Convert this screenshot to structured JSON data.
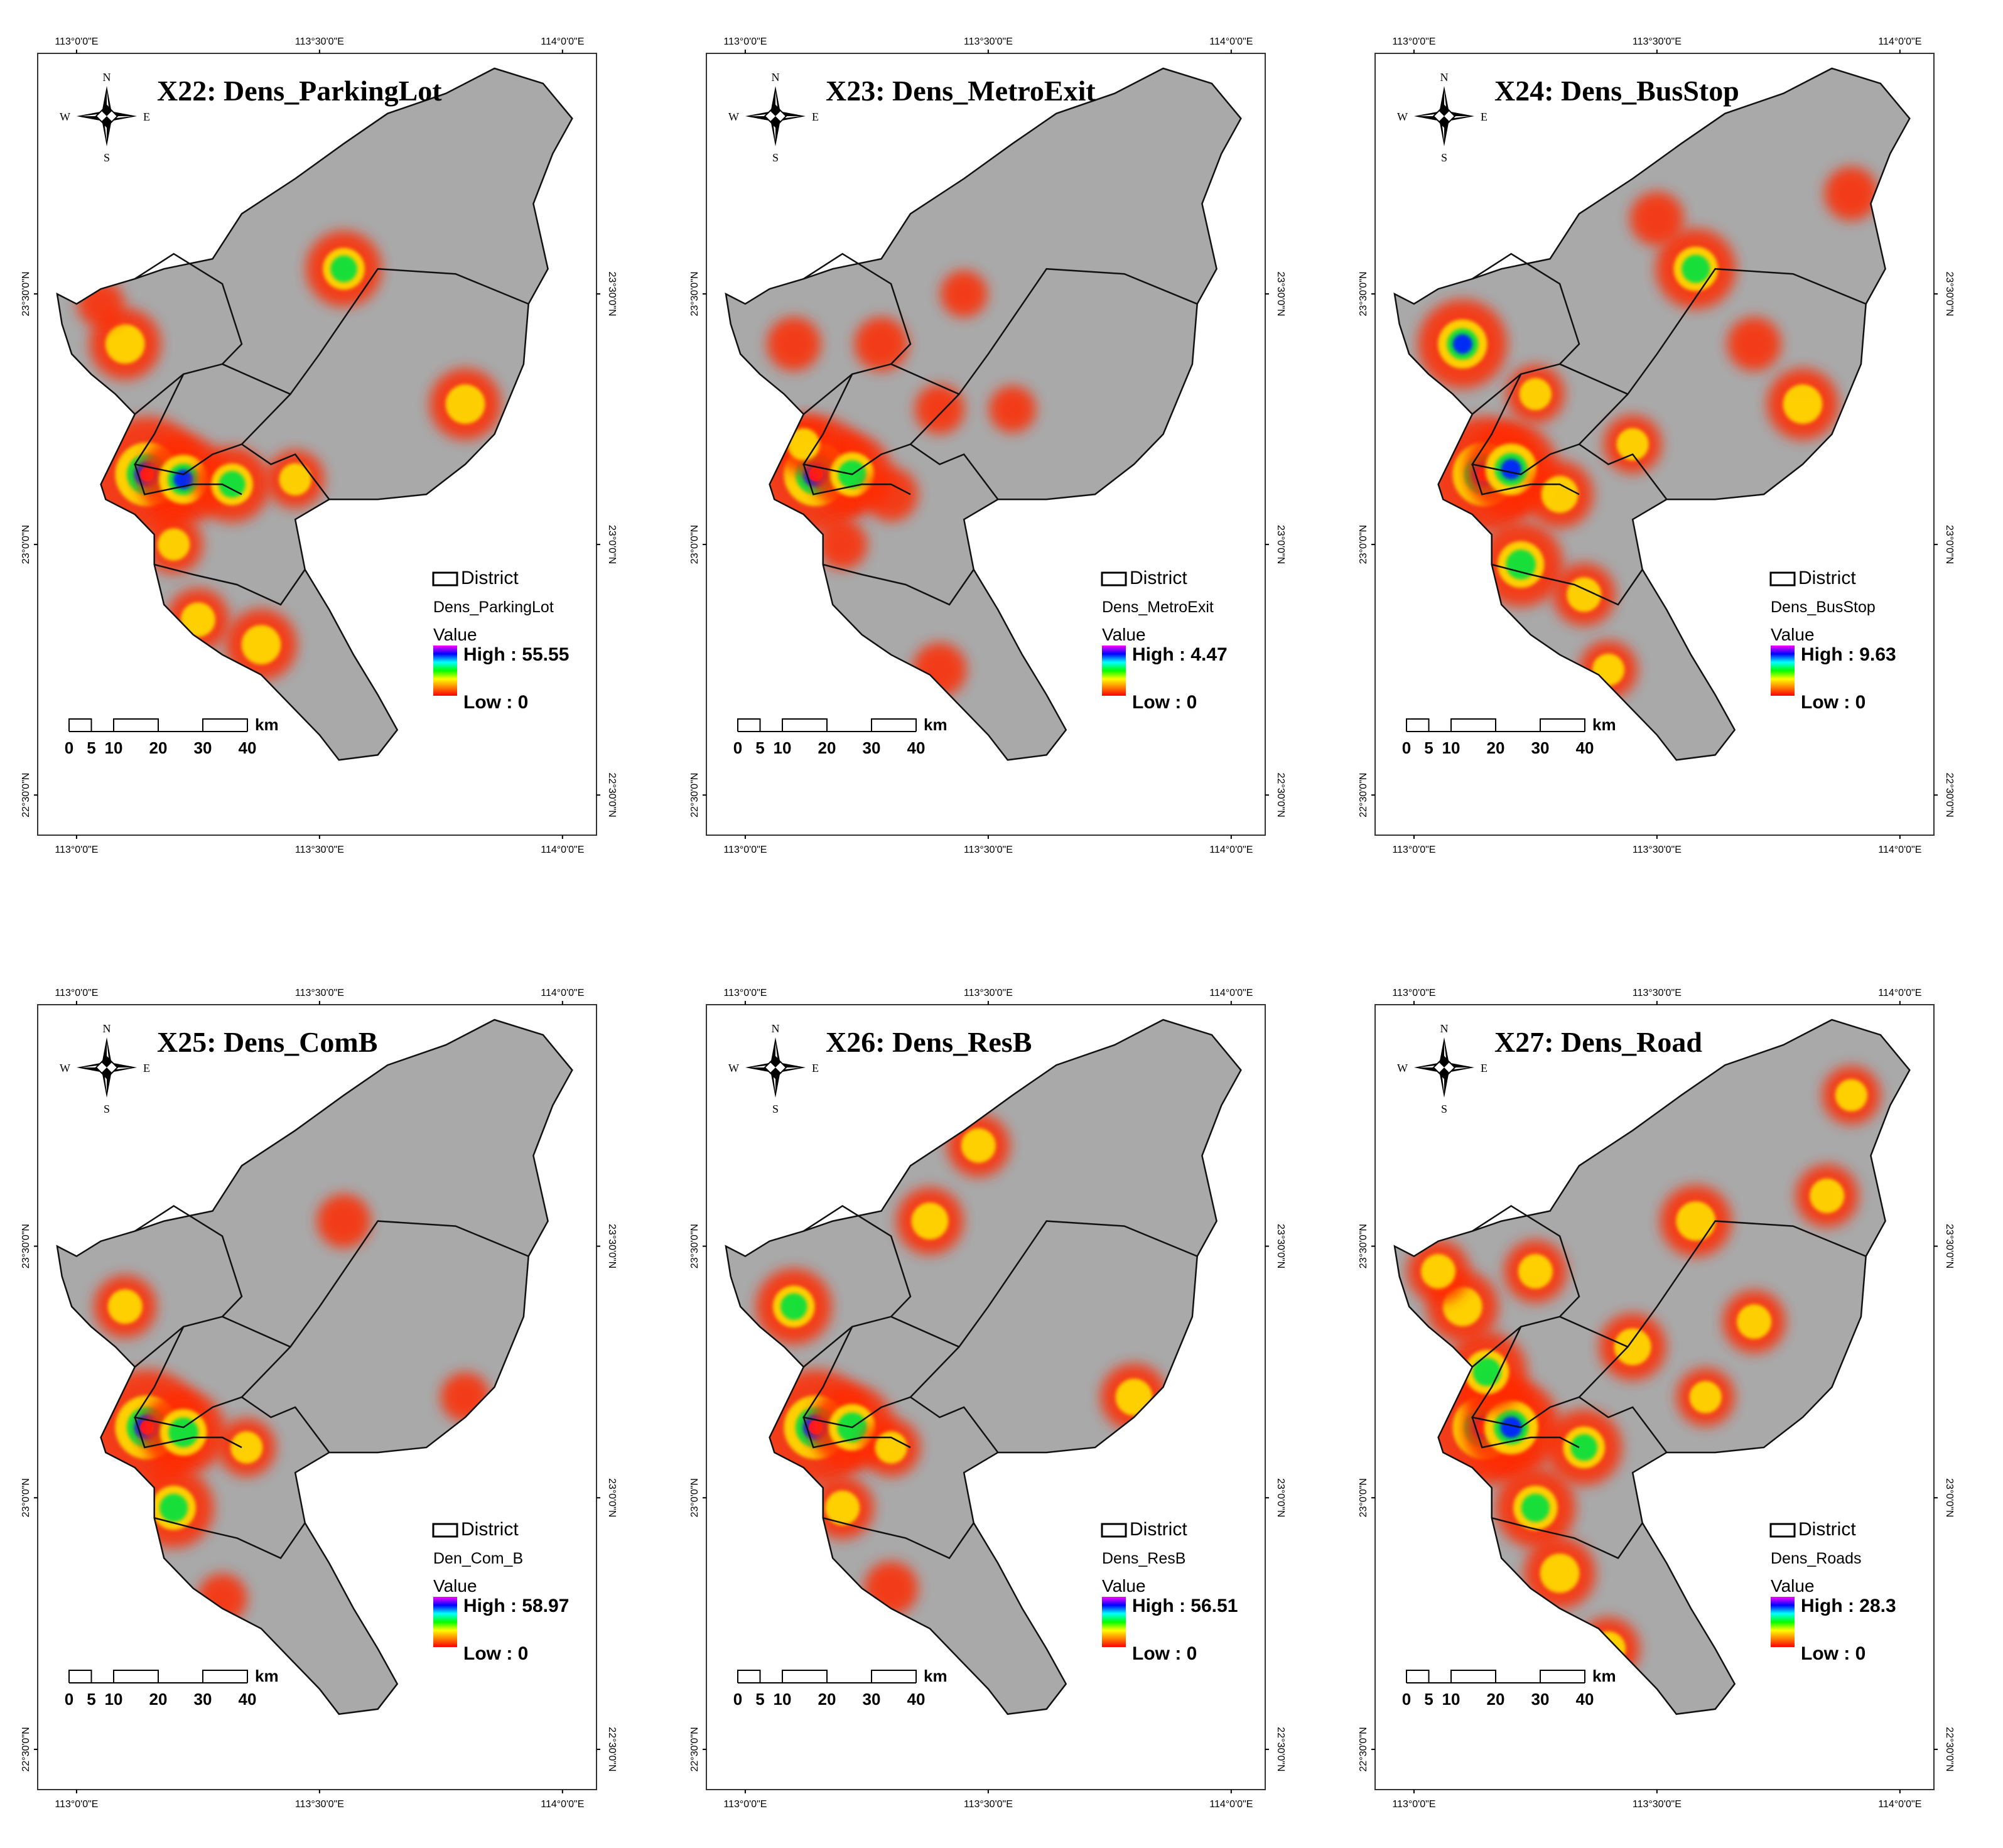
{
  "axes": {
    "lon_ticks": [
      "113°0'0\"E",
      "113°30'0\"E",
      "114°0'0\"E"
    ],
    "lat_ticks": [
      "23°30'0\"N",
      "23°0'0\"N",
      "22°30'0\"N"
    ]
  },
  "compass": {
    "n": "N",
    "s": "S",
    "e": "E",
    "w": "W"
  },
  "scale_bar": {
    "unit": "km",
    "labels": [
      "0",
      "5",
      "10",
      "20",
      "30",
      "40"
    ]
  },
  "legend_common": {
    "district": "District",
    "value": "Value"
  },
  "colors": {
    "land": "#a9a9a9",
    "boundary": "#111111",
    "ramp": [
      "#ff0000",
      "#ff8000",
      "#ffff00",
      "#00ff00",
      "#00ffff",
      "#0000ff",
      "#ff00ff"
    ]
  },
  "panels": [
    {
      "id": "x22",
      "title": "X22: Dens_ParkingLot",
      "layer": "Dens_ParkingLot",
      "high": "High : 55.55",
      "low": "Low : 0",
      "hotspots": [
        {
          "lon": 113.145,
          "lat": 23.14,
          "v": 1.0
        },
        {
          "lon": 113.22,
          "lat": 23.13,
          "v": 0.7
        },
        {
          "lon": 113.32,
          "lat": 23.12,
          "v": 0.55
        },
        {
          "lon": 113.2,
          "lat": 23.0,
          "v": 0.35
        },
        {
          "lon": 113.25,
          "lat": 22.85,
          "v": 0.4
        },
        {
          "lon": 113.38,
          "lat": 22.8,
          "v": 0.5
        },
        {
          "lon": 113.1,
          "lat": 23.4,
          "v": 0.5
        },
        {
          "lon": 113.55,
          "lat": 23.55,
          "v": 0.55
        },
        {
          "lon": 113.8,
          "lat": 23.28,
          "v": 0.5
        },
        {
          "lon": 113.45,
          "lat": 23.13,
          "v": 0.35
        },
        {
          "lon": 113.05,
          "lat": 23.48,
          "v": 0.22
        }
      ]
    },
    {
      "id": "x23",
      "title": "X23: Dens_MetroExit",
      "layer": "Dens_MetroExit",
      "high": "High : 4.47",
      "low": "Low : 0",
      "hotspots": [
        {
          "lon": 113.145,
          "lat": 23.14,
          "v": 1.0
        },
        {
          "lon": 113.22,
          "lat": 23.14,
          "v": 0.6
        },
        {
          "lon": 113.12,
          "lat": 23.2,
          "v": 0.35
        },
        {
          "lon": 113.28,
          "lat": 23.4,
          "v": 0.3
        },
        {
          "lon": 113.4,
          "lat": 23.27,
          "v": 0.25
        },
        {
          "lon": 113.55,
          "lat": 23.27,
          "v": 0.22
        },
        {
          "lon": 113.3,
          "lat": 23.1,
          "v": 0.3
        },
        {
          "lon": 113.2,
          "lat": 23.0,
          "v": 0.25
        },
        {
          "lon": 113.4,
          "lat": 22.75,
          "v": 0.3
        },
        {
          "lon": 113.1,
          "lat": 23.4,
          "v": 0.3
        },
        {
          "lon": 113.45,
          "lat": 23.5,
          "v": 0.22
        }
      ]
    },
    {
      "id": "x24",
      "title": "X24: Dens_BusStop",
      "layer": "Dens_BusStop",
      "high": "High : 9.63",
      "low": "Low : 0",
      "hotspots": [
        {
          "lon": 113.145,
          "lat": 23.14,
          "v": 1.0
        },
        {
          "lon": 113.2,
          "lat": 23.15,
          "v": 0.75
        },
        {
          "lon": 113.22,
          "lat": 22.96,
          "v": 0.65
        },
        {
          "lon": 113.1,
          "lat": 23.4,
          "v": 0.7
        },
        {
          "lon": 113.58,
          "lat": 23.55,
          "v": 0.6
        },
        {
          "lon": 113.8,
          "lat": 23.28,
          "v": 0.5
        },
        {
          "lon": 113.3,
          "lat": 23.1,
          "v": 0.45
        },
        {
          "lon": 113.35,
          "lat": 22.9,
          "v": 0.4
        },
        {
          "lon": 113.25,
          "lat": 23.3,
          "v": 0.35
        },
        {
          "lon": 113.4,
          "lat": 22.75,
          "v": 0.35
        },
        {
          "lon": 113.45,
          "lat": 23.2,
          "v": 0.35
        },
        {
          "lon": 113.7,
          "lat": 23.4,
          "v": 0.3
        },
        {
          "lon": 113.9,
          "lat": 23.7,
          "v": 0.3
        },
        {
          "lon": 113.5,
          "lat": 23.65,
          "v": 0.3
        }
      ]
    },
    {
      "id": "x25",
      "title": "X25: Dens_ComB",
      "layer": "Den_Com_B",
      "high": "High : 58.97",
      "low": "Low : 0",
      "hotspots": [
        {
          "lon": 113.145,
          "lat": 23.14,
          "v": 1.0
        },
        {
          "lon": 113.22,
          "lat": 23.13,
          "v": 0.65
        },
        {
          "lon": 113.2,
          "lat": 22.98,
          "v": 0.6
        },
        {
          "lon": 113.1,
          "lat": 23.38,
          "v": 0.4
        },
        {
          "lon": 113.35,
          "lat": 23.1,
          "v": 0.35
        },
        {
          "lon": 113.3,
          "lat": 22.8,
          "v": 0.25
        },
        {
          "lon": 113.55,
          "lat": 23.55,
          "v": 0.3
        },
        {
          "lon": 113.8,
          "lat": 23.2,
          "v": 0.25
        }
      ]
    },
    {
      "id": "x26",
      "title": "X26: Dens_ResB",
      "layer": "Dens_ResB",
      "high": "High : 56.51",
      "low": "Low : 0",
      "hotspots": [
        {
          "lon": 113.145,
          "lat": 23.14,
          "v": 1.0
        },
        {
          "lon": 113.22,
          "lat": 23.14,
          "v": 0.65
        },
        {
          "lon": 113.1,
          "lat": 23.38,
          "v": 0.55
        },
        {
          "lon": 113.38,
          "lat": 23.55,
          "v": 0.45
        },
        {
          "lon": 113.48,
          "lat": 23.7,
          "v": 0.4
        },
        {
          "lon": 113.8,
          "lat": 23.2,
          "v": 0.45
        },
        {
          "lon": 113.2,
          "lat": 22.98,
          "v": 0.4
        },
        {
          "lon": 113.3,
          "lat": 23.1,
          "v": 0.35
        },
        {
          "lon": 113.3,
          "lat": 22.82,
          "v": 0.3
        }
      ]
    },
    {
      "id": "x27",
      "title": "X27: Dens_Road",
      "layer": "Dens_Roads",
      "high": "High : 28.3",
      "low": "Low : 0",
      "hotspots": [
        {
          "lon": 113.145,
          "lat": 23.14,
          "v": 1.0
        },
        {
          "lon": 113.2,
          "lat": 23.14,
          "v": 0.8
        },
        {
          "lon": 113.15,
          "lat": 23.25,
          "v": 0.6
        },
        {
          "lon": 113.1,
          "lat": 23.38,
          "v": 0.5
        },
        {
          "lon": 113.25,
          "lat": 22.98,
          "v": 0.6
        },
        {
          "lon": 113.3,
          "lat": 22.85,
          "v": 0.5
        },
        {
          "lon": 113.35,
          "lat": 23.1,
          "v": 0.55
        },
        {
          "lon": 113.58,
          "lat": 23.55,
          "v": 0.5
        },
        {
          "lon": 113.45,
          "lat": 23.3,
          "v": 0.45
        },
        {
          "lon": 113.7,
          "lat": 23.35,
          "v": 0.4
        },
        {
          "lon": 113.85,
          "lat": 23.6,
          "v": 0.4
        },
        {
          "lon": 113.4,
          "lat": 22.7,
          "v": 0.4
        },
        {
          "lon": 113.05,
          "lat": 23.45,
          "v": 0.4
        },
        {
          "lon": 113.6,
          "lat": 23.2,
          "v": 0.35
        },
        {
          "lon": 113.9,
          "lat": 23.8,
          "v": 0.35
        },
        {
          "lon": 113.25,
          "lat": 23.45,
          "v": 0.4
        }
      ]
    }
  ]
}
